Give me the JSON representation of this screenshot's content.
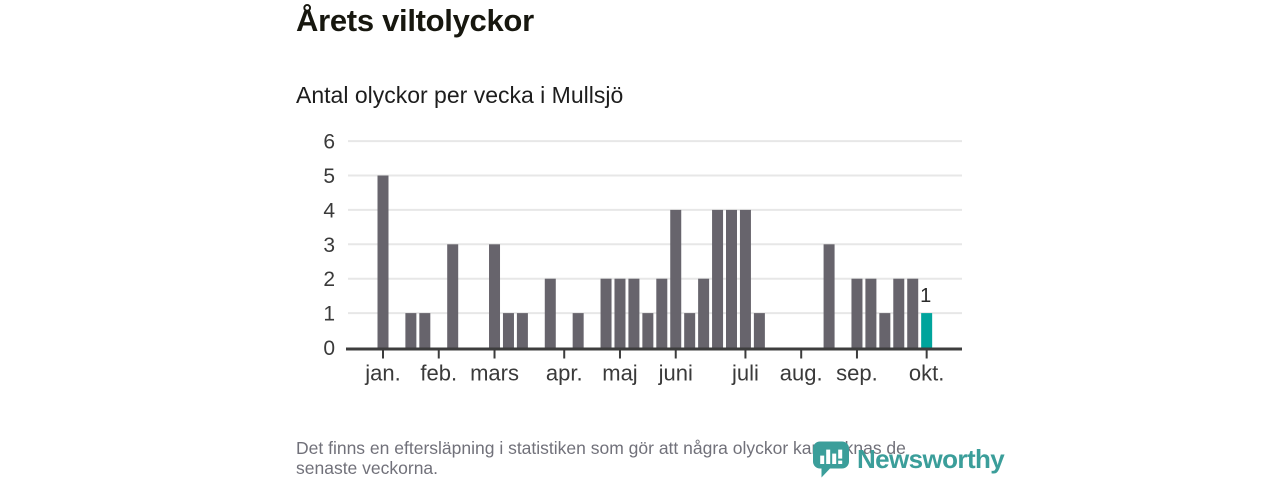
{
  "header": {
    "title": "Årets viltolyckor",
    "subtitle": "Antal olyckor per vecka i Mullsjö"
  },
  "chart_data": {
    "type": "bar",
    "title": "Årets viltolyckor",
    "subtitle": "Antal olyckor per vecka i Mullsjö",
    "x_unit": "vecka",
    "first_week": 1,
    "weeks": [
      1,
      2,
      3,
      4,
      5,
      6,
      7,
      8,
      9,
      10,
      11,
      12,
      13,
      14,
      15,
      16,
      17,
      18,
      19,
      20,
      21,
      22,
      23,
      24,
      25,
      26,
      27,
      28,
      29,
      30,
      31,
      32,
      33,
      34,
      35,
      36,
      37,
      38,
      39,
      40
    ],
    "values": [
      5,
      0,
      1,
      1,
      0,
      3,
      0,
      0,
      3,
      1,
      1,
      0,
      2,
      0,
      1,
      0,
      2,
      2,
      2,
      1,
      2,
      4,
      1,
      2,
      4,
      4,
      4,
      1,
      0,
      0,
      0,
      0,
      3,
      0,
      2,
      2,
      1,
      2,
      2,
      1
    ],
    "highlight_week": 40,
    "annotation": {
      "week": 40,
      "label": "1"
    },
    "month_ticks": [
      {
        "week": 1,
        "label": "jan."
      },
      {
        "week": 5,
        "label": "feb."
      },
      {
        "week": 9,
        "label": "mars"
      },
      {
        "week": 14,
        "label": "apr."
      },
      {
        "week": 18,
        "label": "maj"
      },
      {
        "week": 22,
        "label": "juni"
      },
      {
        "week": 27,
        "label": "juli"
      },
      {
        "week": 31,
        "label": "aug."
      },
      {
        "week": 35,
        "label": "sep."
      },
      {
        "week": 40,
        "label": "okt."
      }
    ],
    "yticks": [
      0,
      1,
      2,
      3,
      4,
      5,
      6
    ],
    "ylim": [
      0,
      6
    ],
    "grid": true,
    "legend": "none",
    "colors": {
      "bar": "#67646c",
      "highlight": "#00a49c",
      "grid": "#e7e7e7",
      "axis": "#3d3d3d",
      "tick_label": "#3a3a3a",
      "annotation": "#2b2b2b"
    }
  },
  "footer": {
    "note_lines": [
      "Det finns en eftersläpning i statistiken som gör att några olyckor kan saknas de",
      "senaste veckorna."
    ],
    "brand": "Newsworthy",
    "brand_color": "#3b9e9a"
  }
}
